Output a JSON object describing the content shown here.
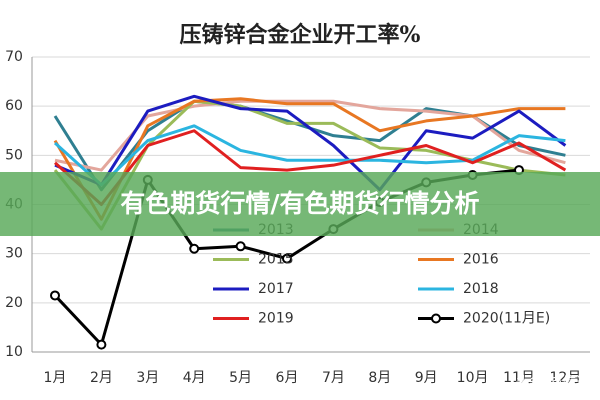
{
  "chart_data": {
    "type": "line",
    "title": "压铸锌合金企业开工率%",
    "categories": [
      "1月",
      "2月",
      "3月",
      "4月",
      "5月",
      "6月",
      "7月",
      "8月",
      "9月",
      "10月",
      "11月",
      "12月"
    ],
    "ylim": [
      10,
      70
    ],
    "yticks": [
      10,
      20,
      30,
      40,
      50,
      60,
      70
    ],
    "grid": true,
    "series": [
      {
        "name": "2013",
        "color": "#2f7f91",
        "values": [
          58,
          43,
          55,
          61,
          60,
          57,
          54,
          53,
          59.5,
          58,
          52,
          50
        ]
      },
      {
        "name": "2014",
        "color": "#e3a69c",
        "values": [
          49,
          47,
          58,
          60,
          61,
          61,
          61,
          59.5,
          59,
          58,
          51,
          48.5
        ]
      },
      {
        "name": "2015",
        "color": "#9bbb59",
        "values": [
          47,
          35,
          52,
          61,
          60,
          56.5,
          56.5,
          51.5,
          51,
          49,
          47,
          46
        ]
      },
      {
        "name": "2016",
        "color": "#e87722",
        "values": [
          53,
          37,
          56,
          61,
          61.5,
          60.5,
          60.5,
          55,
          57,
          58,
          59.5,
          59.5
        ]
      },
      {
        "name": "2017",
        "color": "#1c1cc0",
        "values": [
          48,
          44,
          59,
          62,
          59.5,
          59,
          52,
          43,
          55,
          53.5,
          59,
          52
        ]
      },
      {
        "name": "2018",
        "color": "#2bb5e0",
        "values": [
          52.5,
          44,
          53,
          56,
          51,
          49,
          49,
          49,
          48.5,
          49,
          54,
          53
        ]
      },
      {
        "name": "2019",
        "color": "#e02020",
        "values": [
          48.5,
          40,
          52,
          55,
          47.5,
          47,
          48,
          50,
          52,
          48.5,
          52.5,
          47
        ]
      },
      {
        "name": "2020(11月E)",
        "color": "#000000",
        "marker": true,
        "values": [
          21.5,
          11.5,
          45,
          31,
          31.5,
          29,
          35,
          40.5,
          44.5,
          46,
          47,
          null
        ]
      }
    ]
  },
  "overlay": {
    "banner": "有色期货行情/有色期货行情分析",
    "watermark": "头条 @信达"
  }
}
